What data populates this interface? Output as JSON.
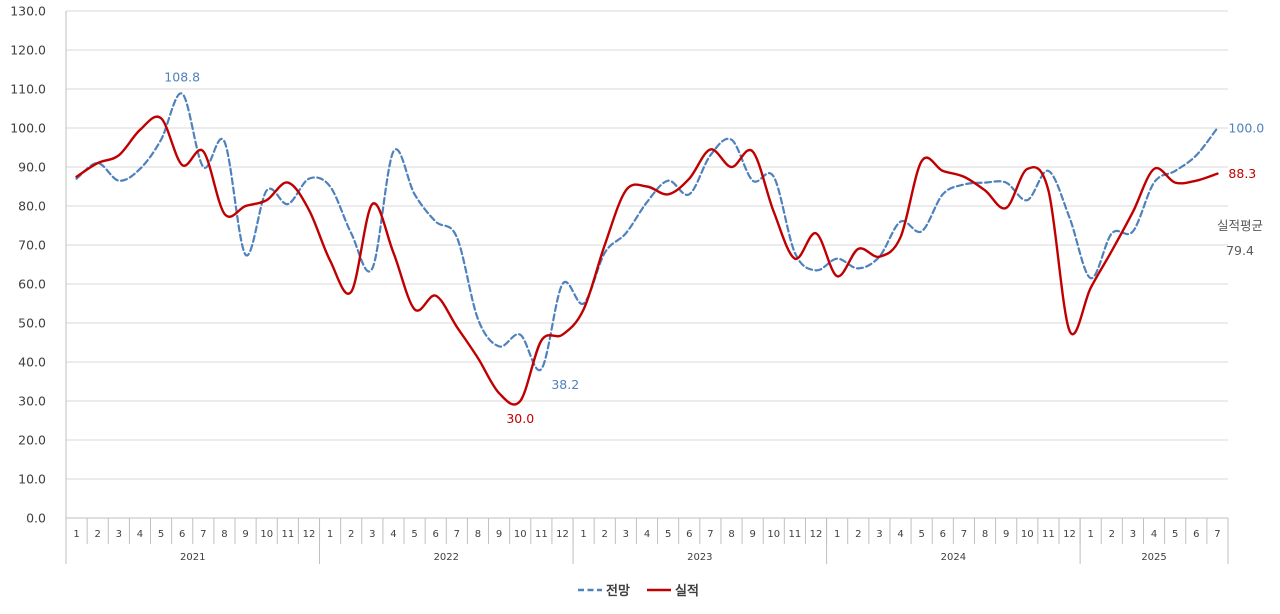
{
  "chart_data": {
    "type": "line",
    "ylim": [
      0,
      130
    ],
    "yticks": [
      0,
      10,
      20,
      30,
      40,
      50,
      60,
      70,
      80,
      90,
      100,
      110,
      120,
      130
    ],
    "grid": true,
    "legend_position": "bottom-center",
    "months": [
      "1",
      "2",
      "3",
      "4",
      "5",
      "6",
      "7",
      "8",
      "9",
      "10",
      "11",
      "12",
      "1",
      "2",
      "3",
      "4",
      "5",
      "6",
      "7",
      "8",
      "9",
      "10",
      "11",
      "12",
      "1",
      "2",
      "3",
      "4",
      "5",
      "6",
      "7",
      "8",
      "9",
      "10",
      "11",
      "12",
      "1",
      "2",
      "3",
      "4",
      "5",
      "6",
      "7",
      "8",
      "9",
      "10",
      "11",
      "12",
      "1",
      "2",
      "3",
      "4",
      "5",
      "6",
      "7"
    ],
    "years": [
      {
        "label": "2021",
        "start": 0,
        "count": 12
      },
      {
        "label": "2022",
        "start": 12,
        "count": 12
      },
      {
        "label": "2023",
        "start": 24,
        "count": 12
      },
      {
        "label": "2024",
        "start": 36,
        "count": 12
      },
      {
        "label": "2025",
        "start": 48,
        "count": 7
      }
    ],
    "series": [
      {
        "name": "전망",
        "color": "#4f81bd",
        "dash": true,
        "values": [
          87,
          91,
          86.5,
          89.5,
          97,
          108.8,
          90,
          96.5,
          67.5,
          84,
          80.5,
          87,
          85,
          73,
          64,
          94,
          83,
          76,
          72,
          51,
          44,
          47,
          38.2,
          60,
          55,
          68,
          73,
          81,
          86.5,
          83,
          93,
          97,
          86.5,
          87.5,
          68,
          63.5,
          66.5,
          64,
          67,
          76,
          73.5,
          83,
          85.5,
          86,
          86,
          81.5,
          89,
          77,
          61.5,
          73,
          73.5,
          86,
          89,
          93,
          100
        ]
      },
      {
        "name": "실적",
        "color": "#c00000",
        "dash": false,
        "values": [
          87.5,
          91,
          93,
          99.5,
          102.5,
          90.5,
          94,
          78,
          80,
          81.5,
          86,
          79,
          66,
          58,
          80.5,
          68,
          53.5,
          57,
          49,
          41,
          32,
          30,
          45.5,
          47,
          53.5,
          70,
          84,
          85,
          83,
          87,
          94.5,
          90,
          94,
          78.5,
          66.5,
          73,
          62,
          69,
          67,
          72,
          91.5,
          89,
          87.5,
          84,
          79.5,
          89.5,
          84,
          48,
          59,
          68.5,
          78.5,
          89.5,
          86,
          86.5,
          88.3
        ]
      }
    ],
    "annotations": [
      {
        "series": 0,
        "index": 5,
        "text": "108.8",
        "position": "above"
      },
      {
        "series": 0,
        "index": 22,
        "text": "38.2",
        "position": "below-right"
      },
      {
        "series": 0,
        "index": 54,
        "text": "100.0",
        "position": "right"
      },
      {
        "series": 1,
        "index": 21,
        "text": "30.0",
        "position": "below"
      },
      {
        "series": 1,
        "index": 54,
        "text": "88.3",
        "position": "right"
      }
    ],
    "side_note": {
      "label": "실적평균",
      "value": "79.4",
      "color": "#595959"
    }
  }
}
